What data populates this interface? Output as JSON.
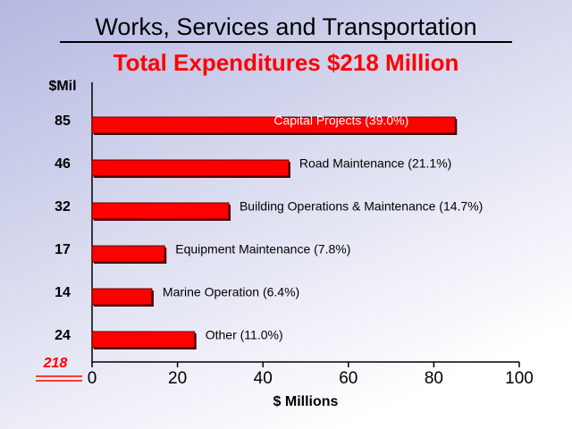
{
  "chart_data": {
    "type": "barh",
    "title": "Works, Services and Transportation",
    "subtitle": "Total Expenditures $218 Million",
    "value_header": "$Mil",
    "categories": [
      "Capital Projects  (39.0%)",
      "Road Maintenance  (21.1%)",
      "Building Operations & Maintenance (14.7%)",
      "Equipment Maintenance  (7.8%)",
      "Marine Operation  (6.4%)",
      "Other  (11.0%)"
    ],
    "values": [
      85,
      46,
      32,
      17,
      14,
      24
    ],
    "total": 218,
    "color": "#ff0000",
    "xlabel": "$ Millions",
    "xlim": [
      0,
      100
    ],
    "xticks": [
      0,
      20,
      40,
      60,
      80,
      100
    ]
  }
}
